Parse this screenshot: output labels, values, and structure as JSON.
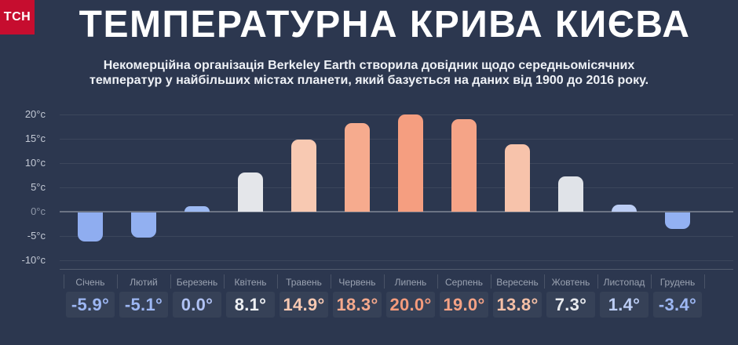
{
  "logo": {
    "text": "ТСН",
    "bg_color": "#c60d2f"
  },
  "header": {
    "title": "ТЕМПЕРАТУРНА КРИВА КИЄВА",
    "subtitle_line1": "Некомерційна організація Berkeley Earth створила довідник щодо середньомісячних",
    "subtitle_line2": "температур у найбільших містах планети, який базується на даних від 1900 до 2016 року."
  },
  "chart_data": {
    "type": "bar",
    "title": "ТЕМПЕРАТУРНА КРИВА КИЄВА",
    "xlabel": "",
    "ylabel": "",
    "unit": "°C",
    "categories": [
      "Січень",
      "Лютий",
      "Березень",
      "Квітень",
      "Травень",
      "Червень",
      "Липень",
      "Серпень",
      "Вересень",
      "Жовтень",
      "Листопад",
      "Грудень"
    ],
    "values": [
      -5.9,
      -5.1,
      0.0,
      8.1,
      14.9,
      18.3,
      20.0,
      19.0,
      13.8,
      7.3,
      1.4,
      -3.4
    ],
    "value_labels": [
      "-5.9°",
      "-5.1°",
      "0.0°",
      "8.1°",
      "14.9°",
      "18.3°",
      "20.0°",
      "19.0°",
      "13.8°",
      "7.3°",
      "1.4°",
      "-3.4°"
    ],
    "bar_colors": [
      "#8fadf0",
      "#92b0f1",
      "#9cb9f3",
      "#e4e6ea",
      "#f8c9b2",
      "#f6ab8e",
      "#f59e80",
      "#f5a487",
      "#f7c3ab",
      "#e0e3e8",
      "#bccdf4",
      "#93b1f2"
    ],
    "value_colors": [
      "#9db7f3",
      "#9db7f3",
      "#b0c2f4",
      "#eef0f3",
      "#f8c9b2",
      "#f6a98c",
      "#f59b7c",
      "#f5a285",
      "#f6c0a6",
      "#e9ebee",
      "#bccdf4",
      "#9db7f3"
    ],
    "yticks": [
      {
        "label": "20°c",
        "value": 20
      },
      {
        "label": "15°c",
        "value": 15
      },
      {
        "label": "10°c",
        "value": 10
      },
      {
        "label": "5°c",
        "value": 5
      },
      {
        "label": "0°c",
        "value": 0,
        "muted": true
      },
      {
        "label": "-5°c",
        "value": -5
      },
      {
        "label": "-10°c",
        "value": -10
      }
    ],
    "ylim": [
      -10,
      20
    ],
    "grid": true,
    "zero_line": true,
    "legend": null
  },
  "colors": {
    "background": "#2c374f",
    "tile_background": "#364157",
    "month_label": "#9aa2b1",
    "ytick_label": "#c3c9d5",
    "cold_accent": "#8fadf0",
    "warm_accent": "#f59e80",
    "logo_red": "#c60d2f"
  }
}
